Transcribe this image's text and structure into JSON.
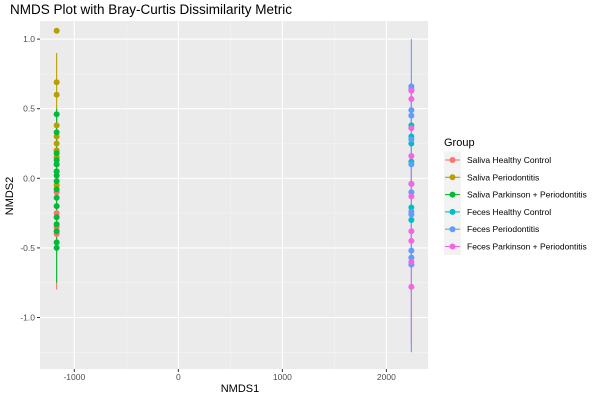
{
  "chart_data": {
    "type": "scatter",
    "title": "NMDS Plot with Bray-Curtis Dissimilarity Metric",
    "xlabel": "NMDS1",
    "ylabel": "NMDS2",
    "xlim": [
      -1330,
      2400
    ],
    "ylim": [
      -1.37,
      1.13
    ],
    "x_ticks": [
      -1000,
      0,
      1000,
      2000
    ],
    "x_tick_labels": [
      "-1000",
      "0",
      "1000",
      "2000"
    ],
    "y_ticks": [
      1.0,
      0.5,
      0.0,
      -0.5,
      -1.0
    ],
    "y_tick_labels": [
      "1.0",
      "0.5",
      "0.0",
      "-0.5",
      "-1.0"
    ],
    "grid": true,
    "panel_background": "#ebebeb",
    "legend": {
      "title": "Group",
      "placement": "right"
    },
    "series": [
      {
        "name": "Saliva Healthy Control",
        "color": "#F8766D",
        "x": -1170,
        "whisker": [
          -0.8,
          0.2
        ],
        "y": [
          0.15,
          -0.25,
          -0.4,
          -0.35,
          0.05,
          0.2,
          -0.1
        ]
      },
      {
        "name": "Saliva Periodontitis",
        "color": "#B79F00",
        "x": -1170,
        "whisker": [
          -0.1,
          0.9
        ],
        "y": [
          1.06,
          0.69,
          0.6,
          0.38,
          0.3,
          0.25,
          0.2,
          0.1,
          0.15,
          -0.05
        ]
      },
      {
        "name": "Saliva Parkinson + Periodontitis",
        "color": "#00BA38",
        "x": -1170,
        "whisker": [
          -0.75,
          0.5
        ],
        "y": [
          0.46,
          0.33,
          0.18,
          0.13,
          0.05,
          -0.02,
          -0.08,
          -0.14,
          -0.2,
          -0.28,
          -0.33,
          -0.38,
          -0.46,
          -0.5,
          0.02,
          0.1
        ]
      },
      {
        "name": "Feces Healthy Control",
        "color": "#00BFC4",
        "x": 2240,
        "whisker": [
          -0.6,
          0.62
        ],
        "y": [
          0.38,
          0.3,
          0.25,
          0.12,
          -0.21,
          -0.3
        ]
      },
      {
        "name": "Feces Periodontitis",
        "color": "#619CFF",
        "x": 2240,
        "whisker": [
          -1.25,
          1.0
        ],
        "y": [
          0.66,
          0.64,
          0.49,
          0.45,
          0.28,
          0.1,
          -0.04,
          -0.1,
          -0.24,
          -0.26,
          -0.52,
          -0.57,
          -0.62
        ]
      },
      {
        "name": "Feces Parkinson + Periodontitis",
        "color": "#F564E3",
        "x": 2240,
        "whisker": [
          -1.2,
          0.65
        ],
        "y": [
          0.63,
          0.57,
          0.36,
          0.16,
          -0.04,
          -0.13,
          -0.38,
          -0.45,
          -0.6,
          -0.78
        ]
      }
    ]
  }
}
